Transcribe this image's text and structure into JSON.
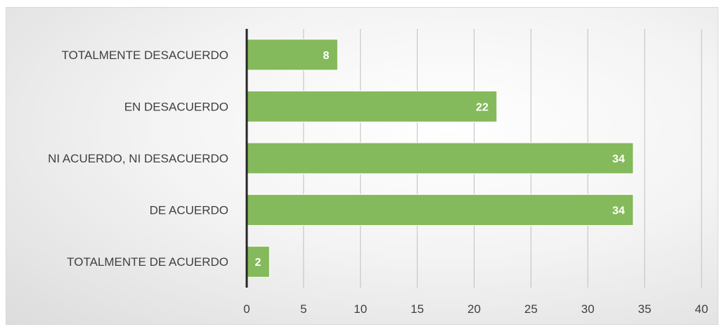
{
  "chart_data": {
    "type": "bar",
    "orientation": "horizontal",
    "categories": [
      "TOTALMENTE DESACUERDO",
      "EN DESACUERDO",
      "NI ACUERDO, NI DESACUERDO",
      "DE ACUERDO",
      "TOTALMENTE DE ACUERDO"
    ],
    "values": [
      8,
      22,
      34,
      34,
      2
    ],
    "xlim": [
      0,
      40
    ],
    "xticks": [
      0,
      5,
      10,
      15,
      20,
      25,
      30,
      35,
      40
    ],
    "grid": true,
    "legend": "none",
    "title": "",
    "xlabel": "",
    "ylabel": ""
  },
  "colors": {
    "bar": "#84ba5b",
    "axis": "#262626"
  }
}
